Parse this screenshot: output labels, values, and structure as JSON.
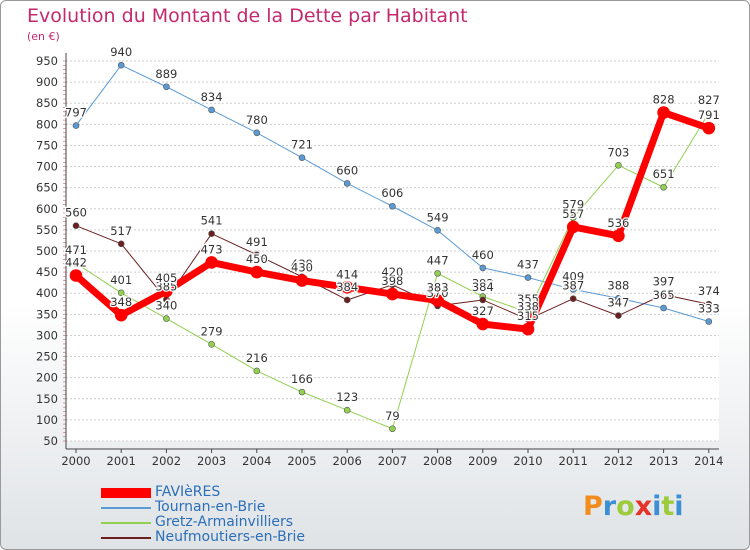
{
  "title": "Evolution du Montant de la Dette par Habitant",
  "unit": "(en €)",
  "logo": {
    "letters": [
      "P",
      "r",
      "o",
      "x",
      "i",
      "t",
      "i"
    ],
    "colors": [
      "#f28c1e",
      "#3b8fd4",
      "#9ccb3b",
      "#e5332a",
      "#3b8fd4",
      "#9ccb3b",
      "#3b8fd4"
    ]
  },
  "chart_data": {
    "type": "line",
    "title": "Evolution du Montant de la Dette par Habitant",
    "ylabel": "(en €)",
    "xlabel": "",
    "ylim": [
      50,
      950
    ],
    "yticks": [
      50,
      100,
      150,
      200,
      250,
      300,
      350,
      400,
      450,
      500,
      550,
      600,
      650,
      700,
      750,
      800,
      850,
      900,
      950
    ],
    "x": [
      "2000",
      "2001",
      "2002",
      "2003",
      "2004",
      "2005",
      "2006",
      "2007",
      "2008",
      "2009",
      "2010",
      "2011",
      "2012",
      "2013",
      "2014"
    ],
    "grid": "horizontal dashed",
    "legend_position": "bottom-left",
    "series": [
      {
        "name": "FAVIèRES",
        "color": "#ff0000",
        "width": 7,
        "values": [
          442,
          348,
          405,
          473,
          450,
          430,
          414,
          398,
          383,
          327,
          315,
          557,
          536,
          828,
          791
        ],
        "labels": [
          "442",
          "348",
          "405",
          "473",
          "450",
          "430",
          "414",
          "398",
          "383",
          "327",
          "315",
          "557",
          "536",
          "828",
          "791"
        ]
      },
      {
        "name": "Tournan-en-Brie",
        "color": "#5b9bd5",
        "width": 1,
        "values": [
          797,
          940,
          889,
          834,
          780,
          721,
          660,
          606,
          549,
          460,
          437,
          409,
          388,
          365,
          333
        ],
        "labels": [
          "797",
          "940",
          "889",
          "834",
          "780",
          "721",
          "660",
          "606",
          "549",
          "460",
          "437",
          "409",
          "388",
          "365",
          "333"
        ]
      },
      {
        "name": "Gretz-Armainvilliers",
        "color": "#92d050",
        "width": 1,
        "values": [
          471,
          401,
          340,
          279,
          216,
          166,
          123,
          79,
          447,
          392,
          355,
          579,
          703,
          651,
          827
        ],
        "labels": [
          "471",
          "401",
          "340",
          "279",
          "216",
          "166",
          "123",
          "79",
          "447",
          "392",
          "355",
          "579",
          "703",
          "651",
          "827"
        ]
      },
      {
        "name": "Neufmoutiers-en-Brie",
        "color": "#6b1f1f",
        "width": 1,
        "values": [
          560,
          517,
          385,
          541,
          491,
          439,
          384,
          420,
          370,
          384,
          338,
          387,
          347,
          397,
          374
        ],
        "labels": [
          "560",
          "517",
          "385",
          "541",
          "491",
          "439",
          "384",
          "420",
          "370",
          "384",
          "338",
          "387",
          "347",
          "397",
          "374"
        ]
      }
    ]
  }
}
